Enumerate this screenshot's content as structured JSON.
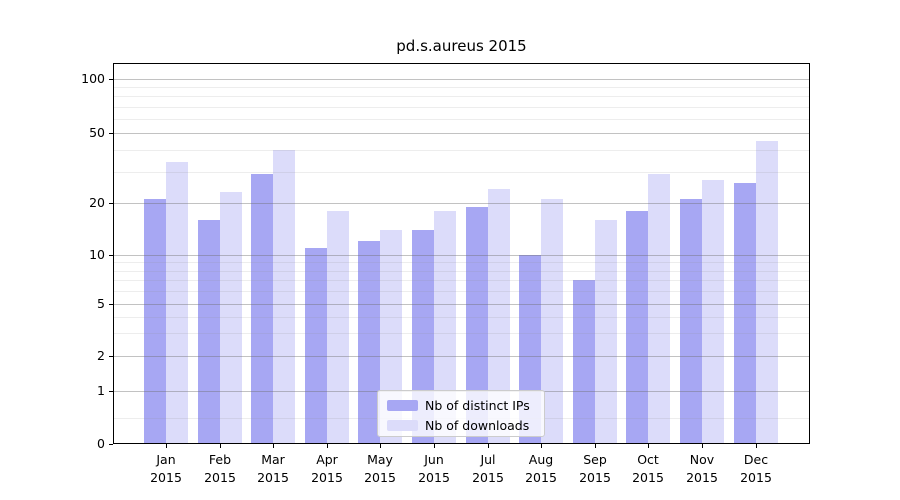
{
  "chart_data": {
    "type": "bar",
    "title": "pd.s.aureus 2015",
    "categories": [
      "Jan",
      "Feb",
      "Mar",
      "Apr",
      "May",
      "Jun",
      "Jul",
      "Aug",
      "Sep",
      "Oct",
      "Nov",
      "Dec"
    ],
    "category_year": "2015",
    "series": [
      {
        "name": "Nb of distinct IPs",
        "color": "#a7a7f3",
        "values": [
          21,
          16,
          29,
          11,
          12,
          14,
          19,
          10,
          7,
          18,
          21,
          26
        ]
      },
      {
        "name": "Nb of downloads",
        "color": "#dcdcfa",
        "values": [
          34,
          23,
          40,
          18,
          14,
          18,
          24,
          21,
          16,
          29,
          27,
          45
        ]
      }
    ],
    "y_scale": "symlog",
    "y_ticks": [
      0,
      1,
      2,
      5,
      10,
      20,
      50,
      100
    ],
    "y_minor_gridlines": [
      0.5,
      3,
      4,
      6,
      7,
      8,
      9,
      30,
      40,
      60,
      70,
      80,
      90
    ],
    "ylim": [
      0,
      123
    ],
    "grid": true,
    "legend_position": "lower center inside"
  }
}
